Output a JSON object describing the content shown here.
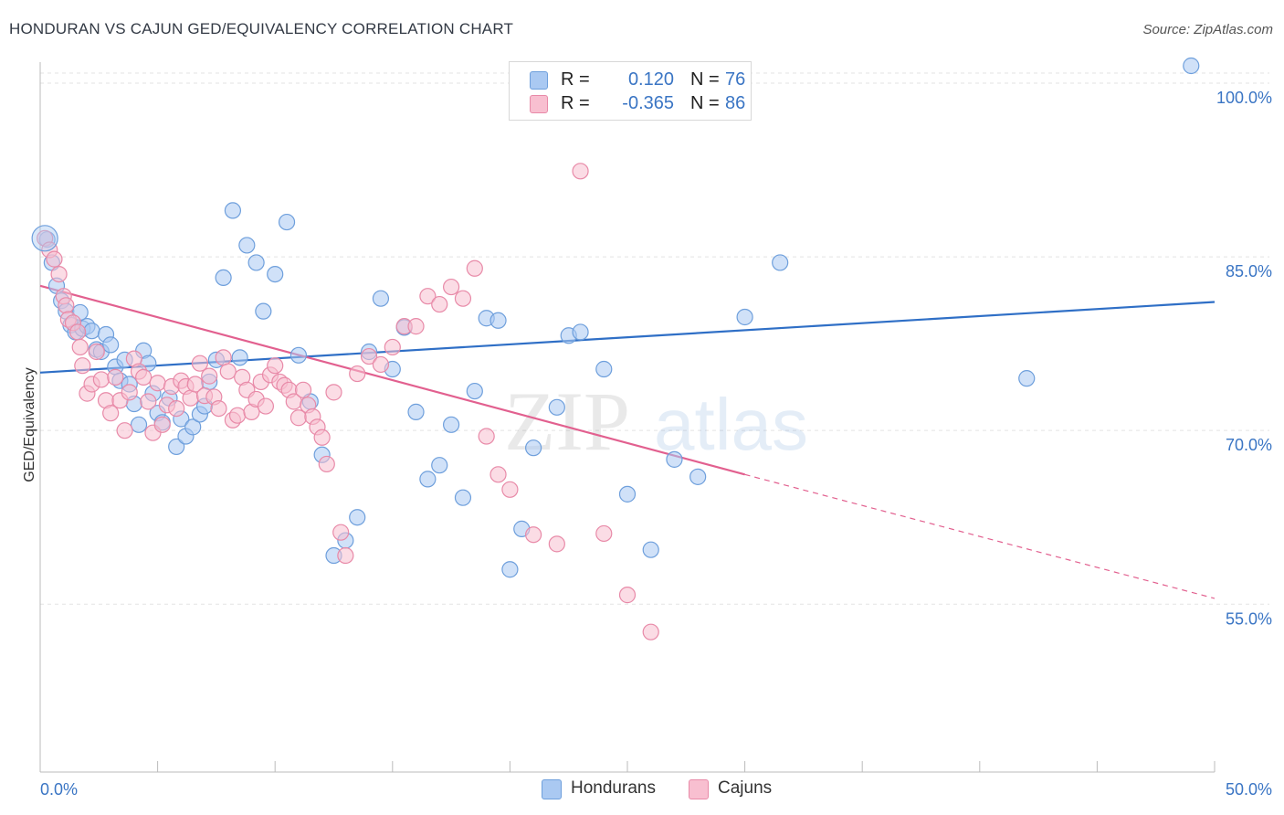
{
  "title": "HONDURAN VS CAJUN GED/EQUIVALENCY CORRELATION CHART",
  "source": "Source: ZipAtlas.com",
  "watermark": {
    "zip": "ZIP",
    "atlas": "atlas"
  },
  "legend": {
    "rows": [
      {
        "r_label": "R =",
        "r_value": "0.120",
        "n_label": "N =",
        "n_value": "76",
        "color": "#aac9f2",
        "border": "#6e9fdc"
      },
      {
        "r_label": "R =",
        "r_value": "-0.365",
        "n_label": "N =",
        "n_value": "86",
        "color": "#f8bfd0",
        "border": "#e88aa8"
      }
    ]
  },
  "chart_data": {
    "type": "scatter",
    "title": "HONDURAN VS CAJUN GED/EQUIVALENCY CORRELATION CHART",
    "xlabel": "",
    "ylabel": "GED/Equivalency",
    "xlim": [
      0,
      50
    ],
    "ylim": [
      40.5,
      101.5
    ],
    "x_tick_labels": [
      "0.0%",
      "50.0%"
    ],
    "y_ticks": [
      55,
      70,
      85,
      100
    ],
    "y_tick_labels": [
      "55.0%",
      "70.0%",
      "85.0%",
      "100.0%"
    ],
    "grid": true,
    "legend_position": "top-center",
    "series": [
      {
        "name": "Hondurans",
        "color": "#aac9f2",
        "edge": "#6e9fdc",
        "trend": {
          "x": [
            0,
            50
          ],
          "y": [
            75.0,
            81.1
          ],
          "color": "#2f6fc6"
        },
        "points": [
          [
            0.3,
            86.5
          ],
          [
            0.5,
            84.5
          ],
          [
            0.7,
            82.5
          ],
          [
            0.9,
            81.2
          ],
          [
            1.1,
            80.3
          ],
          [
            1.3,
            79.1
          ],
          [
            1.5,
            78.5
          ],
          [
            1.7,
            80.2
          ],
          [
            1.8,
            78.8
          ],
          [
            2.0,
            79.0
          ],
          [
            2.2,
            78.6
          ],
          [
            2.4,
            77.0
          ],
          [
            2.6,
            76.8
          ],
          [
            2.8,
            78.3
          ],
          [
            3.0,
            77.4
          ],
          [
            3.2,
            75.5
          ],
          [
            3.4,
            74.3
          ],
          [
            3.6,
            76.1
          ],
          [
            3.8,
            74.0
          ],
          [
            4.0,
            72.3
          ],
          [
            4.2,
            70.5
          ],
          [
            4.4,
            76.9
          ],
          [
            4.6,
            75.8
          ],
          [
            4.8,
            73.2
          ],
          [
            5.0,
            71.5
          ],
          [
            5.2,
            70.7
          ],
          [
            5.5,
            72.8
          ],
          [
            5.8,
            68.6
          ],
          [
            6.0,
            71.0
          ],
          [
            6.2,
            69.5
          ],
          [
            6.5,
            70.3
          ],
          [
            6.8,
            71.4
          ],
          [
            7.0,
            72.1
          ],
          [
            7.2,
            74.2
          ],
          [
            7.5,
            76.1
          ],
          [
            7.8,
            83.2
          ],
          [
            8.2,
            89.0
          ],
          [
            8.5,
            76.3
          ],
          [
            8.8,
            86.0
          ],
          [
            9.2,
            84.5
          ],
          [
            9.5,
            80.3
          ],
          [
            10.0,
            83.5
          ],
          [
            10.5,
            88.0
          ],
          [
            11.0,
            76.5
          ],
          [
            11.5,
            72.5
          ],
          [
            12.0,
            67.9
          ],
          [
            12.5,
            59.2
          ],
          [
            13.0,
            60.5
          ],
          [
            13.5,
            62.5
          ],
          [
            14.0,
            76.8
          ],
          [
            14.5,
            81.4
          ],
          [
            15.0,
            75.3
          ],
          [
            15.5,
            78.9
          ],
          [
            16.0,
            71.6
          ],
          [
            16.5,
            65.8
          ],
          [
            17.0,
            67.0
          ],
          [
            17.5,
            70.5
          ],
          [
            18.0,
            64.2
          ],
          [
            18.5,
            73.4
          ],
          [
            19.0,
            79.7
          ],
          [
            19.5,
            79.5
          ],
          [
            20.0,
            58.0
          ],
          [
            20.5,
            61.5
          ],
          [
            21.0,
            68.5
          ],
          [
            22.0,
            72.0
          ],
          [
            22.5,
            78.2
          ],
          [
            23.0,
            78.5
          ],
          [
            24.0,
            75.3
          ],
          [
            25.0,
            64.5
          ],
          [
            26.0,
            59.7
          ],
          [
            27.0,
            67.5
          ],
          [
            28.0,
            66.0
          ],
          [
            30.0,
            79.8
          ],
          [
            31.5,
            84.5
          ],
          [
            42.0,
            74.5
          ],
          [
            49.0,
            101.5
          ]
        ]
      },
      {
        "name": "Cajuns",
        "color": "#f8bfd0",
        "edge": "#e88aa8",
        "trend": {
          "x": [
            0,
            30
          ],
          "y": [
            82.5,
            66.2
          ],
          "dashed_to": {
            "x": 50,
            "y": 55.5
          },
          "color": "#e2608f"
        },
        "points": [
          [
            0.2,
            86.6
          ],
          [
            0.4,
            85.6
          ],
          [
            0.6,
            84.8
          ],
          [
            0.8,
            83.5
          ],
          [
            1.0,
            81.6
          ],
          [
            1.1,
            80.8
          ],
          [
            1.2,
            79.6
          ],
          [
            1.4,
            79.3
          ],
          [
            1.6,
            78.5
          ],
          [
            1.7,
            77.2
          ],
          [
            1.8,
            75.6
          ],
          [
            2.0,
            73.2
          ],
          [
            2.2,
            74.0
          ],
          [
            2.4,
            76.8
          ],
          [
            2.6,
            74.4
          ],
          [
            2.8,
            72.6
          ],
          [
            3.0,
            71.5
          ],
          [
            3.2,
            74.6
          ],
          [
            3.4,
            72.6
          ],
          [
            3.6,
            70.0
          ],
          [
            3.8,
            73.3
          ],
          [
            4.0,
            76.2
          ],
          [
            4.2,
            75.1
          ],
          [
            4.4,
            74.6
          ],
          [
            4.6,
            72.5
          ],
          [
            4.8,
            69.8
          ],
          [
            5.0,
            74.1
          ],
          [
            5.2,
            70.5
          ],
          [
            5.4,
            72.2
          ],
          [
            5.6,
            73.8
          ],
          [
            5.8,
            71.9
          ],
          [
            6.0,
            74.3
          ],
          [
            6.2,
            73.8
          ],
          [
            6.4,
            72.8
          ],
          [
            6.6,
            74.0
          ],
          [
            6.8,
            75.8
          ],
          [
            7.0,
            73.0
          ],
          [
            7.2,
            74.7
          ],
          [
            7.4,
            72.9
          ],
          [
            7.6,
            71.9
          ],
          [
            7.8,
            76.3
          ],
          [
            8.0,
            75.1
          ],
          [
            8.2,
            70.9
          ],
          [
            8.4,
            71.3
          ],
          [
            8.6,
            74.6
          ],
          [
            8.8,
            73.5
          ],
          [
            9.0,
            71.6
          ],
          [
            9.2,
            72.7
          ],
          [
            9.4,
            74.2
          ],
          [
            9.6,
            72.1
          ],
          [
            9.8,
            74.8
          ],
          [
            10.0,
            75.6
          ],
          [
            10.2,
            74.2
          ],
          [
            10.4,
            73.9
          ],
          [
            10.6,
            73.5
          ],
          [
            10.8,
            72.5
          ],
          [
            11.0,
            71.1
          ],
          [
            11.2,
            73.5
          ],
          [
            11.4,
            72.2
          ],
          [
            11.6,
            71.2
          ],
          [
            11.8,
            70.3
          ],
          [
            12.0,
            69.4
          ],
          [
            12.2,
            67.1
          ],
          [
            12.5,
            73.3
          ],
          [
            12.8,
            61.2
          ],
          [
            13.0,
            59.2
          ],
          [
            13.5,
            74.9
          ],
          [
            14.0,
            76.4
          ],
          [
            14.5,
            75.7
          ],
          [
            15.0,
            77.2
          ],
          [
            15.5,
            79.0
          ],
          [
            16.0,
            79.0
          ],
          [
            16.5,
            81.6
          ],
          [
            17.0,
            80.9
          ],
          [
            17.5,
            82.4
          ],
          [
            18.0,
            81.4
          ],
          [
            18.5,
            84.0
          ],
          [
            19.0,
            69.5
          ],
          [
            19.5,
            66.2
          ],
          [
            20.0,
            64.9
          ],
          [
            21.0,
            61.0
          ],
          [
            22.0,
            60.2
          ],
          [
            23.0,
            92.4
          ],
          [
            24.0,
            61.1
          ],
          [
            25.0,
            55.8
          ],
          [
            26.0,
            52.6
          ]
        ]
      }
    ]
  }
}
